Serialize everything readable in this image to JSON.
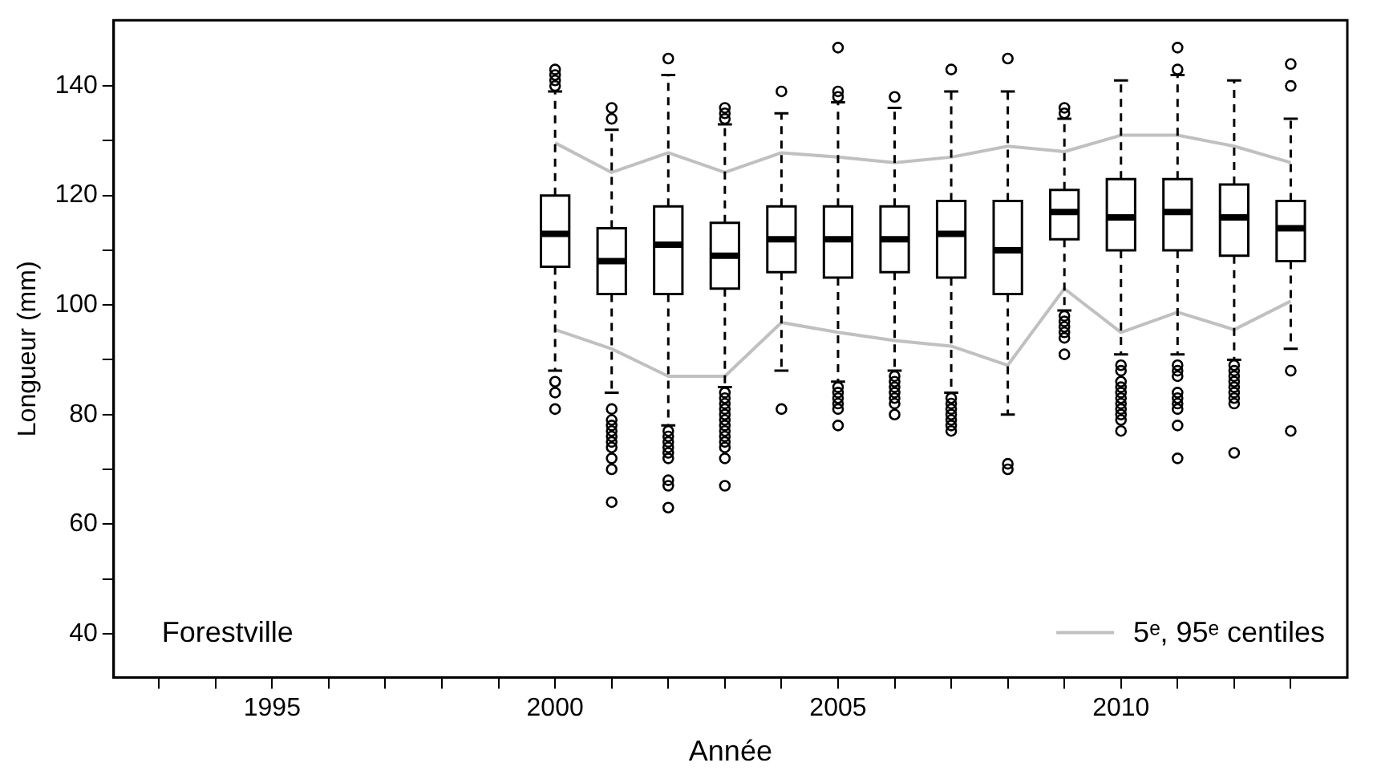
{
  "chart_data": {
    "type": "box",
    "xlabel": "Année",
    "ylabel": "Longueur (mm)",
    "annotations": [
      "Forestville"
    ],
    "legend": "bottom right",
    "grid": false,
    "marker": "none",
    "xlim": [
      1992.2,
      2014
    ],
    "xticks": [
      {
        "value": 1993,
        "label": null
      },
      {
        "value": 1994,
        "label": null
      },
      1995,
      {
        "value": 1996,
        "label": null
      },
      {
        "value": 1997,
        "label": null
      },
      {
        "value": 1998,
        "label": null
      },
      {
        "value": 1999,
        "label": null
      },
      2000,
      {
        "value": 2001,
        "label": null
      },
      {
        "value": 2002,
        "label": null
      },
      {
        "value": 2003,
        "label": null
      },
      {
        "value": 2004,
        "label": null
      },
      2005,
      {
        "value": 2006,
        "label": null
      },
      {
        "value": 2007,
        "label": null
      },
      {
        "value": 2008,
        "label": null
      },
      {
        "value": 2009,
        "label": null
      },
      2010,
      {
        "value": 2011,
        "label": null
      },
      {
        "value": 2012,
        "label": null
      },
      {
        "value": 2013,
        "label": null
      }
    ],
    "ylim": [
      32,
      152
    ],
    "yticks": [
      40,
      {
        "value": 50,
        "label": null
      },
      60,
      {
        "value": 70,
        "label": null
      },
      80,
      {
        "value": 90,
        "label": null
      },
      100,
      {
        "value": 110,
        "label": null
      },
      120,
      {
        "value": 130,
        "label": null
      },
      140
    ],
    "series": [
      {
        "type": "box",
        "color": "#000000",
        "x": [
          2000,
          2001,
          2002,
          2003,
          2004,
          2005,
          2006,
          2007,
          2008,
          2009,
          2010,
          2011,
          2012,
          2013
        ],
        "boxes": [
          {
            "low": 88,
            "q1": 107,
            "median": 113,
            "q3": 120,
            "high": 139,
            "outliers": [
              140,
              141,
              142,
              143,
              86,
              84,
              81
            ]
          },
          {
            "low": 84,
            "q1": 102,
            "median": 108,
            "q3": 114,
            "high": 132,
            "outliers": [
              134,
              136,
              81,
              79,
              78,
              77,
              76,
              75,
              74,
              72,
              70,
              64
            ]
          },
          {
            "low": 78,
            "q1": 102,
            "median": 111,
            "q3": 118,
            "high": 142,
            "outliers": [
              145,
              77,
              76,
              75,
              74,
              73,
              72,
              68,
              67,
              63
            ]
          },
          {
            "low": 85,
            "q1": 103,
            "median": 109,
            "q3": 115,
            "high": 133,
            "outliers": [
              134,
              135,
              136,
              84,
              83,
              82,
              81,
              80,
              79,
              78,
              77,
              76,
              75,
              74,
              72,
              67
            ]
          },
          {
            "low": 88,
            "q1": 106,
            "median": 112,
            "q3": 118,
            "high": 135,
            "outliers": [
              139,
              81
            ]
          },
          {
            "low": 86,
            "q1": 105,
            "median": 112,
            "q3": 118,
            "high": 137,
            "outliers": [
              138,
              139,
              147,
              85,
              84,
              83,
              82,
              81,
              78
            ]
          },
          {
            "low": 88,
            "q1": 106,
            "median": 112,
            "q3": 118,
            "high": 136,
            "outliers": [
              138,
              87,
              86,
              85,
              84,
              83,
              82,
              80
            ]
          },
          {
            "low": 84,
            "q1": 105,
            "median": 113,
            "q3": 119,
            "high": 139,
            "outliers": [
              143,
              83,
              82,
              81,
              80,
              79,
              78,
              77
            ]
          },
          {
            "low": 80,
            "q1": 102,
            "median": 110,
            "q3": 119,
            "high": 139,
            "outliers": [
              145,
              71,
              70
            ]
          },
          {
            "low": 99,
            "q1": 112,
            "median": 117,
            "q3": 121,
            "high": 134,
            "outliers": [
              135,
              136,
              98,
              97,
              96,
              95,
              94,
              91
            ]
          },
          {
            "low": 91,
            "q1": 110,
            "median": 116,
            "q3": 123,
            "high": 141,
            "outliers": [
              89,
              88,
              86,
              85,
              84,
              83,
              82,
              81,
              80,
              79,
              77
            ]
          },
          {
            "low": 91,
            "q1": 110,
            "median": 117,
            "q3": 123,
            "high": 142,
            "outliers": [
              143,
              147,
              89,
              88,
              87,
              84,
              83,
              82,
              81,
              78,
              72
            ]
          },
          {
            "low": 90,
            "q1": 109,
            "median": 116,
            "q3": 122,
            "high": 141,
            "outliers": [
              89,
              88,
              87,
              86,
              85,
              84,
              83,
              82,
              73
            ]
          },
          {
            "low": 92,
            "q1": 108,
            "median": 114,
            "q3": 119,
            "high": 134,
            "outliers": [
              140,
              144,
              88,
              77
            ]
          }
        ]
      },
      {
        "type": "line",
        "name": "5ᵉ, 95ᵉ centiles",
        "color": "#c0c0c0",
        "x": [
          2000,
          2001,
          2002,
          2003,
          2004,
          2005,
          2006,
          2007,
          2008,
          2009,
          2010,
          2011,
          2012,
          2013
        ],
        "values": [
          129.6,
          124.2,
          127.8,
          124.2,
          127.8,
          127,
          126,
          127,
          129,
          128,
          131,
          131,
          129,
          126
        ]
      },
      {
        "type": "line",
        "color": "#c0c0c0",
        "x": [
          2000,
          2001,
          2002,
          2003,
          2004,
          2005,
          2006,
          2007,
          2008,
          2009,
          2010,
          2011,
          2012,
          2013
        ],
        "values": [
          95.5,
          92,
          87,
          87,
          96.8,
          95,
          93.5,
          92.5,
          89,
          103,
          95,
          98.7,
          95.5,
          100.7
        ]
      }
    ]
  }
}
